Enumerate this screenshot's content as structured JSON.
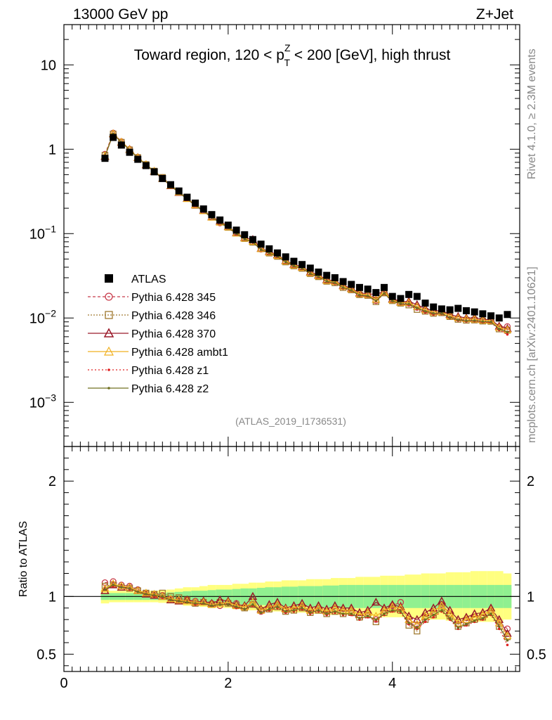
{
  "header": {
    "energy_label": "13000 GeV pp",
    "process_label": "Z+Jet"
  },
  "side_labels": {
    "rivet": "Rivet 4.1.0, ≥ 2.3M events",
    "mcplots": "mcplots.cern.ch [arXiv:2401.10621]"
  },
  "chart_data": {
    "type": "line",
    "title_parts": {
      "prefix": "Toward region, 120 < p",
      "sub": "T",
      "sup": "Z",
      "suffix": " < 200 [GeV], high thrust"
    },
    "analysis_id": "(ATLAS_2019_I1736531)",
    "xlim": [
      0,
      5.55
    ],
    "xticks": [
      "0",
      "2",
      "4"
    ],
    "main_panel": {
      "yscale": "log",
      "ylim": [
        0.0003,
        30
      ],
      "yticks": [
        {
          "value": 10,
          "base": "10",
          "exp": ""
        },
        {
          "value": 1,
          "base": "1",
          "exp": ""
        },
        {
          "value": 0.1,
          "base": "10",
          "exp": "−1"
        },
        {
          "value": 0.01,
          "base": "10",
          "exp": "−2"
        },
        {
          "value": 0.001,
          "base": "10",
          "exp": "−3"
        }
      ],
      "x": [
        0.5,
        0.6,
        0.7,
        0.8,
        0.9,
        1.0,
        1.1,
        1.2,
        1.3,
        1.4,
        1.5,
        1.6,
        1.7,
        1.8,
        1.9,
        2.0,
        2.1,
        2.2,
        2.3,
        2.4,
        2.5,
        2.6,
        2.7,
        2.8,
        2.9,
        3.0,
        3.1,
        3.2,
        3.3,
        3.4,
        3.5,
        3.6,
        3.7,
        3.8,
        3.9,
        4.0,
        4.1,
        4.2,
        4.3,
        4.4,
        4.5,
        4.6,
        4.7,
        4.8,
        4.9,
        5.0,
        5.1,
        5.2,
        5.3,
        5.4
      ],
      "data": {
        "name": "ATLAS",
        "values": [
          0.78,
          1.38,
          1.12,
          0.92,
          0.76,
          0.64,
          0.54,
          0.45,
          0.38,
          0.32,
          0.27,
          0.23,
          0.196,
          0.168,
          0.145,
          0.126,
          0.11,
          0.097,
          0.085,
          0.075,
          0.066,
          0.059,
          0.053,
          0.047,
          0.043,
          0.039,
          0.035,
          0.032,
          0.03,
          0.027,
          0.025,
          0.023,
          0.022,
          0.02,
          0.023,
          0.018,
          0.017,
          0.019,
          0.018,
          0.015,
          0.0135,
          0.0128,
          0.0125,
          0.013,
          0.0122,
          0.0118,
          0.0112,
          0.0106,
          0.01,
          0.011
        ]
      }
    },
    "ratio_panel": {
      "ylabel": "Ratio to ATLAS",
      "ylim": [
        0.35,
        2.3
      ],
      "yticks": [
        "0.5",
        "1",
        "2"
      ],
      "band_stat": [
        0.03,
        0.03,
        0.03,
        0.03,
        0.03,
        0.03,
        0.03,
        0.03,
        0.035,
        0.04,
        0.045,
        0.05,
        0.05,
        0.055,
        0.06,
        0.06,
        0.065,
        0.07,
        0.07,
        0.075,
        0.08,
        0.08,
        0.085,
        0.085,
        0.09,
        0.09,
        0.09,
        0.095,
        0.095,
        0.1,
        0.1,
        0.1,
        0.1,
        0.1,
        0.1,
        0.1,
        0.1,
        0.1,
        0.1,
        0.1,
        0.1,
        0.1,
        0.1,
        0.1,
        0.1,
        0.1,
        0.1,
        0.1,
        0.1,
        0.1
      ],
      "band_total": [
        0.06,
        0.05,
        0.05,
        0.05,
        0.05,
        0.05,
        0.05,
        0.055,
        0.06,
        0.07,
        0.08,
        0.08,
        0.09,
        0.1,
        0.1,
        0.1,
        0.11,
        0.11,
        0.12,
        0.12,
        0.13,
        0.13,
        0.14,
        0.14,
        0.14,
        0.15,
        0.15,
        0.15,
        0.16,
        0.16,
        0.16,
        0.17,
        0.17,
        0.17,
        0.18,
        0.18,
        0.18,
        0.19,
        0.19,
        0.2,
        0.2,
        0.2,
        0.21,
        0.21,
        0.21,
        0.22,
        0.22,
        0.22,
        0.22,
        0.2
      ]
    },
    "series": [
      {
        "name": "Pythia 6.428 345",
        "color": "#c83a4a",
        "marker": "circle",
        "dash": "4,3",
        "ratio": [
          1.12,
          1.13,
          1.1,
          1.09,
          1.06,
          1.03,
          1.02,
          1.01,
          0.98,
          0.97,
          0.97,
          0.96,
          0.95,
          0.94,
          0.92,
          0.95,
          0.94,
          0.91,
          0.93,
          0.87,
          0.9,
          0.93,
          0.88,
          0.9,
          0.91,
          0.88,
          0.9,
          0.87,
          0.89,
          0.87,
          0.88,
          0.84,
          0.86,
          0.8,
          0.88,
          0.92,
          0.95,
          0.78,
          0.74,
          0.82,
          0.86,
          0.93,
          0.85,
          0.76,
          0.79,
          0.82,
          0.84,
          0.88,
          0.78,
          0.72
        ]
      },
      {
        "name": "Pythia 6.428 346",
        "color": "#a07a30",
        "marker": "square",
        "dash": "2,2",
        "ratio": [
          1.09,
          1.1,
          1.08,
          1.07,
          1.05,
          1.03,
          1.02,
          1.03,
          1.0,
          0.99,
          0.97,
          0.94,
          0.95,
          0.93,
          0.95,
          0.94,
          0.92,
          0.9,
          0.93,
          0.88,
          0.89,
          0.91,
          0.87,
          0.88,
          0.9,
          0.86,
          0.88,
          0.85,
          0.87,
          0.85,
          0.86,
          0.82,
          0.84,
          0.78,
          0.86,
          0.89,
          0.88,
          0.75,
          0.7,
          0.8,
          0.84,
          0.9,
          0.83,
          0.74,
          0.77,
          0.8,
          0.82,
          0.86,
          0.74,
          0.65
        ]
      },
      {
        "name": "Pythia 6.428 370",
        "color": "#9a1a2a",
        "marker": "triangle",
        "dash": "",
        "ratio": [
          1.05,
          1.1,
          1.08,
          1.08,
          1.05,
          1.02,
          1.01,
          1.0,
          0.97,
          0.96,
          0.97,
          0.95,
          0.96,
          0.94,
          0.97,
          0.96,
          0.93,
          0.92,
          1.0,
          0.89,
          0.93,
          0.95,
          0.9,
          0.92,
          0.94,
          0.9,
          0.92,
          0.89,
          0.92,
          0.9,
          0.9,
          0.86,
          0.88,
          0.95,
          0.9,
          0.93,
          0.91,
          0.83,
          0.8,
          0.86,
          0.9,
          0.96,
          0.88,
          0.8,
          0.82,
          0.85,
          0.86,
          0.9,
          0.8,
          0.68
        ]
      },
      {
        "name": "Pythia 6.428 ambt1",
        "color": "#f0b020",
        "marker": "triangle-open",
        "dash": "",
        "ratio": [
          1.07,
          1.11,
          1.09,
          1.08,
          1.05,
          1.03,
          1.02,
          1.0,
          0.98,
          0.97,
          0.96,
          0.95,
          0.95,
          0.93,
          0.94,
          0.95,
          0.92,
          0.91,
          0.95,
          0.88,
          0.91,
          0.93,
          0.89,
          0.9,
          0.92,
          0.88,
          0.9,
          0.87,
          0.9,
          0.88,
          0.88,
          0.84,
          0.86,
          0.83,
          0.88,
          0.91,
          0.9,
          0.8,
          0.76,
          0.83,
          0.87,
          0.92,
          0.85,
          0.77,
          0.8,
          0.82,
          0.84,
          0.88,
          0.77,
          0.66
        ]
      },
      {
        "name": "Pythia 6.428 z1",
        "color": "#e02020",
        "marker": "dot",
        "dash": "2,3",
        "ratio": [
          1.06,
          1.09,
          1.08,
          1.06,
          1.04,
          1.02,
          1.0,
          0.99,
          0.97,
          0.96,
          0.95,
          0.93,
          0.94,
          0.92,
          0.93,
          0.93,
          0.9,
          0.89,
          0.92,
          0.86,
          0.88,
          0.9,
          0.86,
          0.87,
          0.89,
          0.85,
          0.87,
          0.84,
          0.86,
          0.84,
          0.84,
          0.8,
          0.82,
          0.79,
          0.84,
          0.87,
          0.86,
          0.76,
          0.72,
          0.78,
          0.82,
          0.87,
          0.8,
          0.72,
          0.75,
          0.78,
          0.8,
          0.84,
          0.72,
          0.58
        ]
      },
      {
        "name": "Pythia 6.428 z2",
        "color": "#707020",
        "marker": "dot",
        "dash": "",
        "ratio": [
          1.06,
          1.1,
          1.08,
          1.07,
          1.04,
          1.02,
          1.01,
          1.0,
          0.97,
          0.96,
          0.95,
          0.94,
          0.94,
          0.92,
          0.93,
          0.93,
          0.91,
          0.89,
          0.93,
          0.86,
          0.89,
          0.91,
          0.87,
          0.88,
          0.9,
          0.86,
          0.88,
          0.85,
          0.87,
          0.85,
          0.85,
          0.81,
          0.83,
          0.8,
          0.85,
          0.88,
          0.87,
          0.77,
          0.73,
          0.8,
          0.84,
          0.88,
          0.81,
          0.73,
          0.76,
          0.79,
          0.81,
          0.85,
          0.74,
          0.62
        ]
      }
    ]
  }
}
